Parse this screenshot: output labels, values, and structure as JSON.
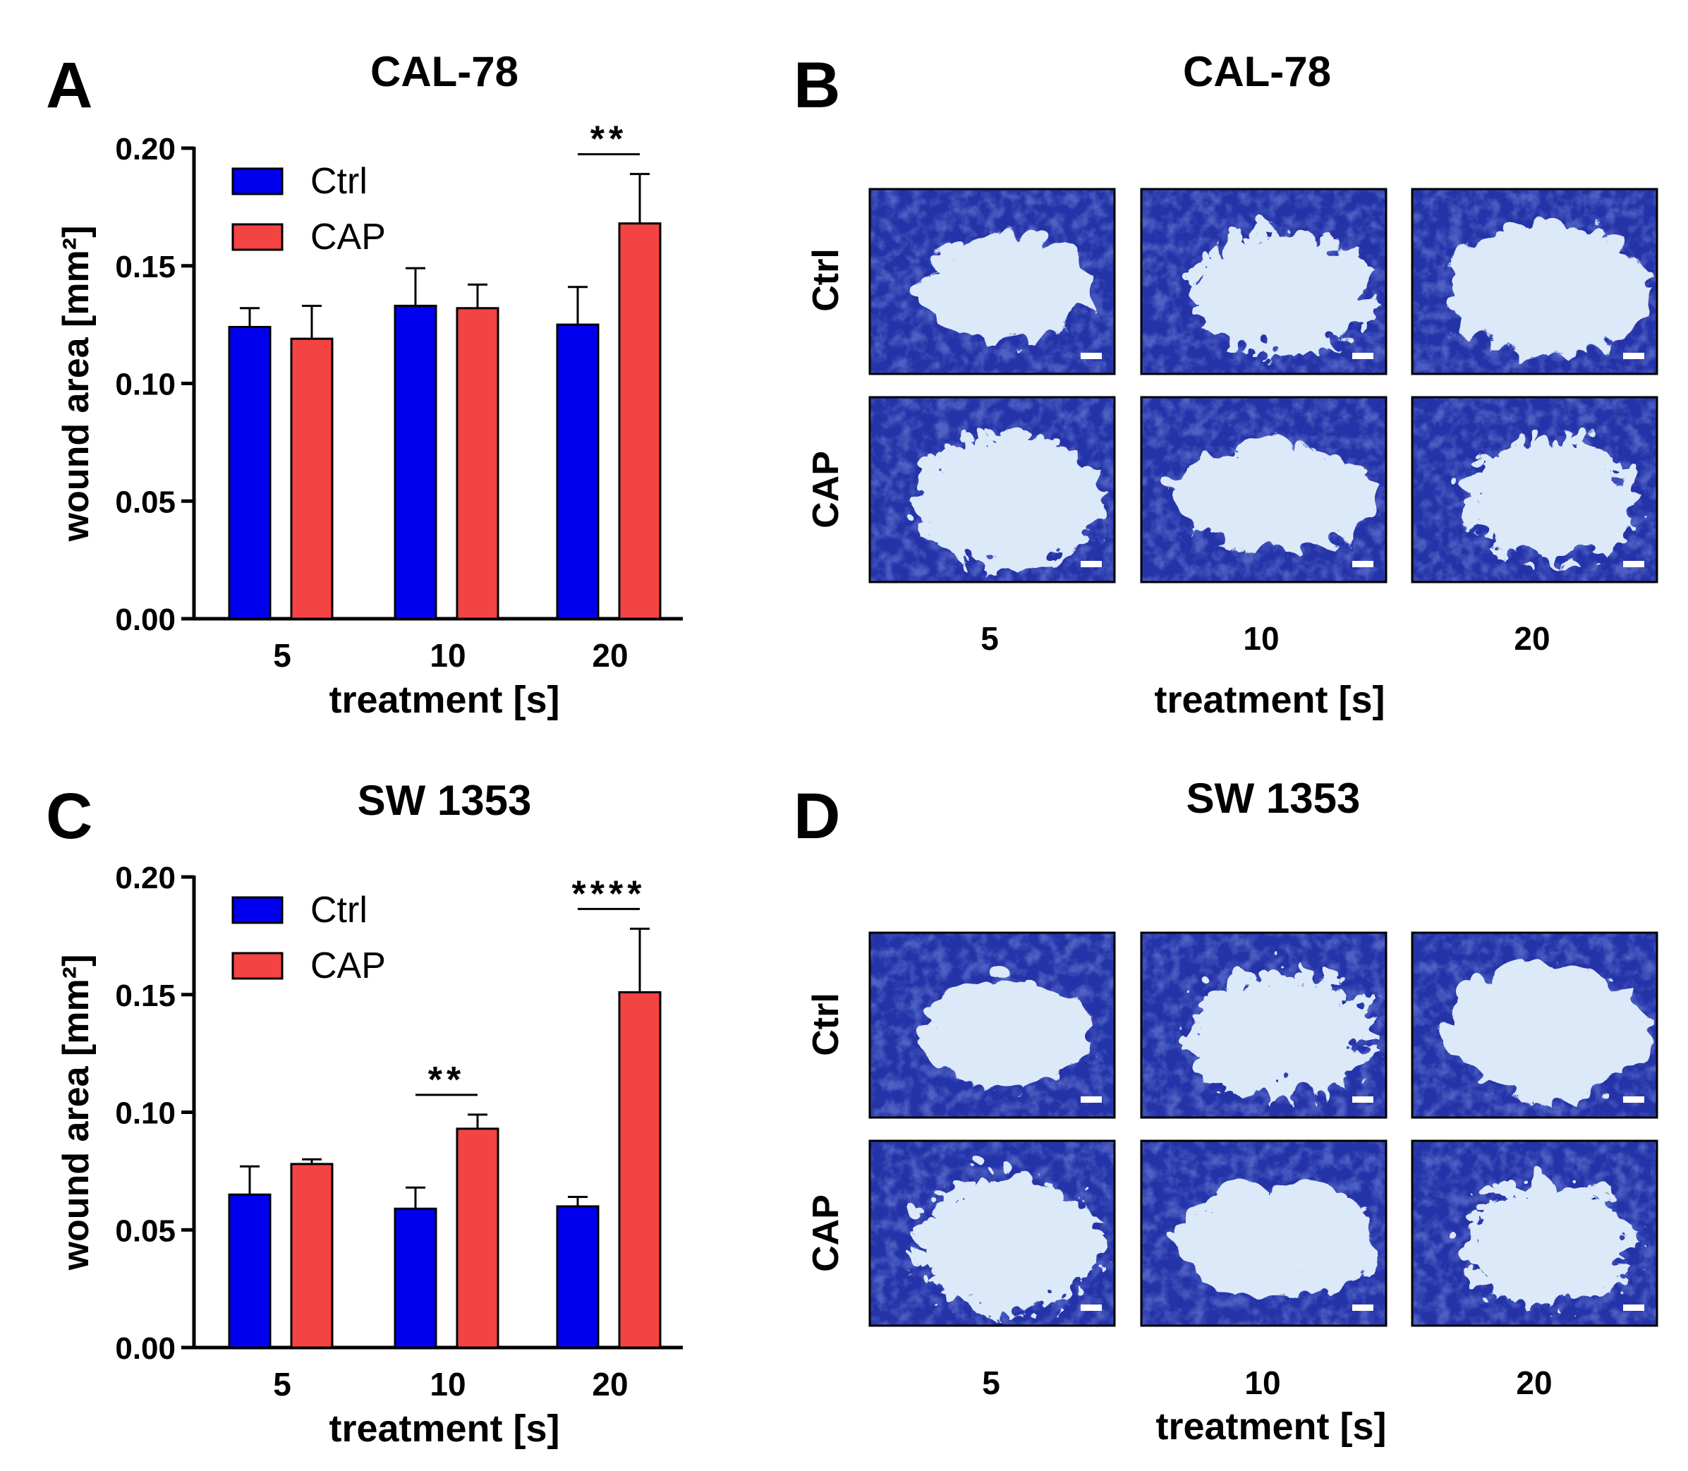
{
  "colors": {
    "ctrl": "#0000ee",
    "cap": "#f44343",
    "axis": "#000000"
  },
  "panels": {
    "A": {
      "letter": "A"
    },
    "B": {
      "letter": "B",
      "title": "CAL-78",
      "row_labels": [
        "Ctrl",
        "CAP"
      ],
      "col_labels": [
        "5",
        "10",
        "20"
      ],
      "xlabel": "treatment [s]"
    },
    "C": {
      "letter": "C"
    },
    "D": {
      "letter": "D",
      "title": "SW 1353",
      "row_labels": [
        "Ctrl",
        "CAP"
      ],
      "col_labels": [
        "5",
        "10",
        "20"
      ],
      "xlabel": "treatment [s]"
    }
  },
  "chart_data": [
    {
      "panel": "A",
      "type": "bar",
      "title": "CAL-78",
      "xlabel": "treatment [s]",
      "ylabel": "wound area [mm²]",
      "categories": [
        "5",
        "10",
        "20"
      ],
      "ylim": [
        0,
        0.2
      ],
      "yticks": [
        "0.00",
        "0.05",
        "0.10",
        "0.15",
        "0.20"
      ],
      "legend_position": "top-left",
      "series": [
        {
          "name": "Ctrl",
          "values": [
            0.124,
            0.133,
            0.125
          ],
          "errors": [
            0.008,
            0.016,
            0.016
          ]
        },
        {
          "name": "CAP",
          "values": [
            0.119,
            0.132,
            0.168
          ],
          "errors": [
            0.014,
            0.01,
            0.021
          ]
        }
      ],
      "significance": [
        {
          "category": "20",
          "label": "**"
        }
      ]
    },
    {
      "panel": "C",
      "type": "bar",
      "title": "SW 1353",
      "xlabel": "treatment [s]",
      "ylabel": "wound area [mm²]",
      "categories": [
        "5",
        "10",
        "20"
      ],
      "ylim": [
        0,
        0.2
      ],
      "yticks": [
        "0.00",
        "0.05",
        "0.10",
        "0.15",
        "0.20"
      ],
      "legend_position": "top-left",
      "series": [
        {
          "name": "Ctrl",
          "values": [
            0.065,
            0.059,
            0.06
          ],
          "errors": [
            0.012,
            0.009,
            0.004
          ]
        },
        {
          "name": "CAP",
          "values": [
            0.078,
            0.093,
            0.151
          ],
          "errors": [
            0.002,
            0.006,
            0.027
          ]
        }
      ],
      "significance": [
        {
          "category": "10",
          "label": "**"
        },
        {
          "category": "20",
          "label": "****"
        }
      ]
    }
  ]
}
